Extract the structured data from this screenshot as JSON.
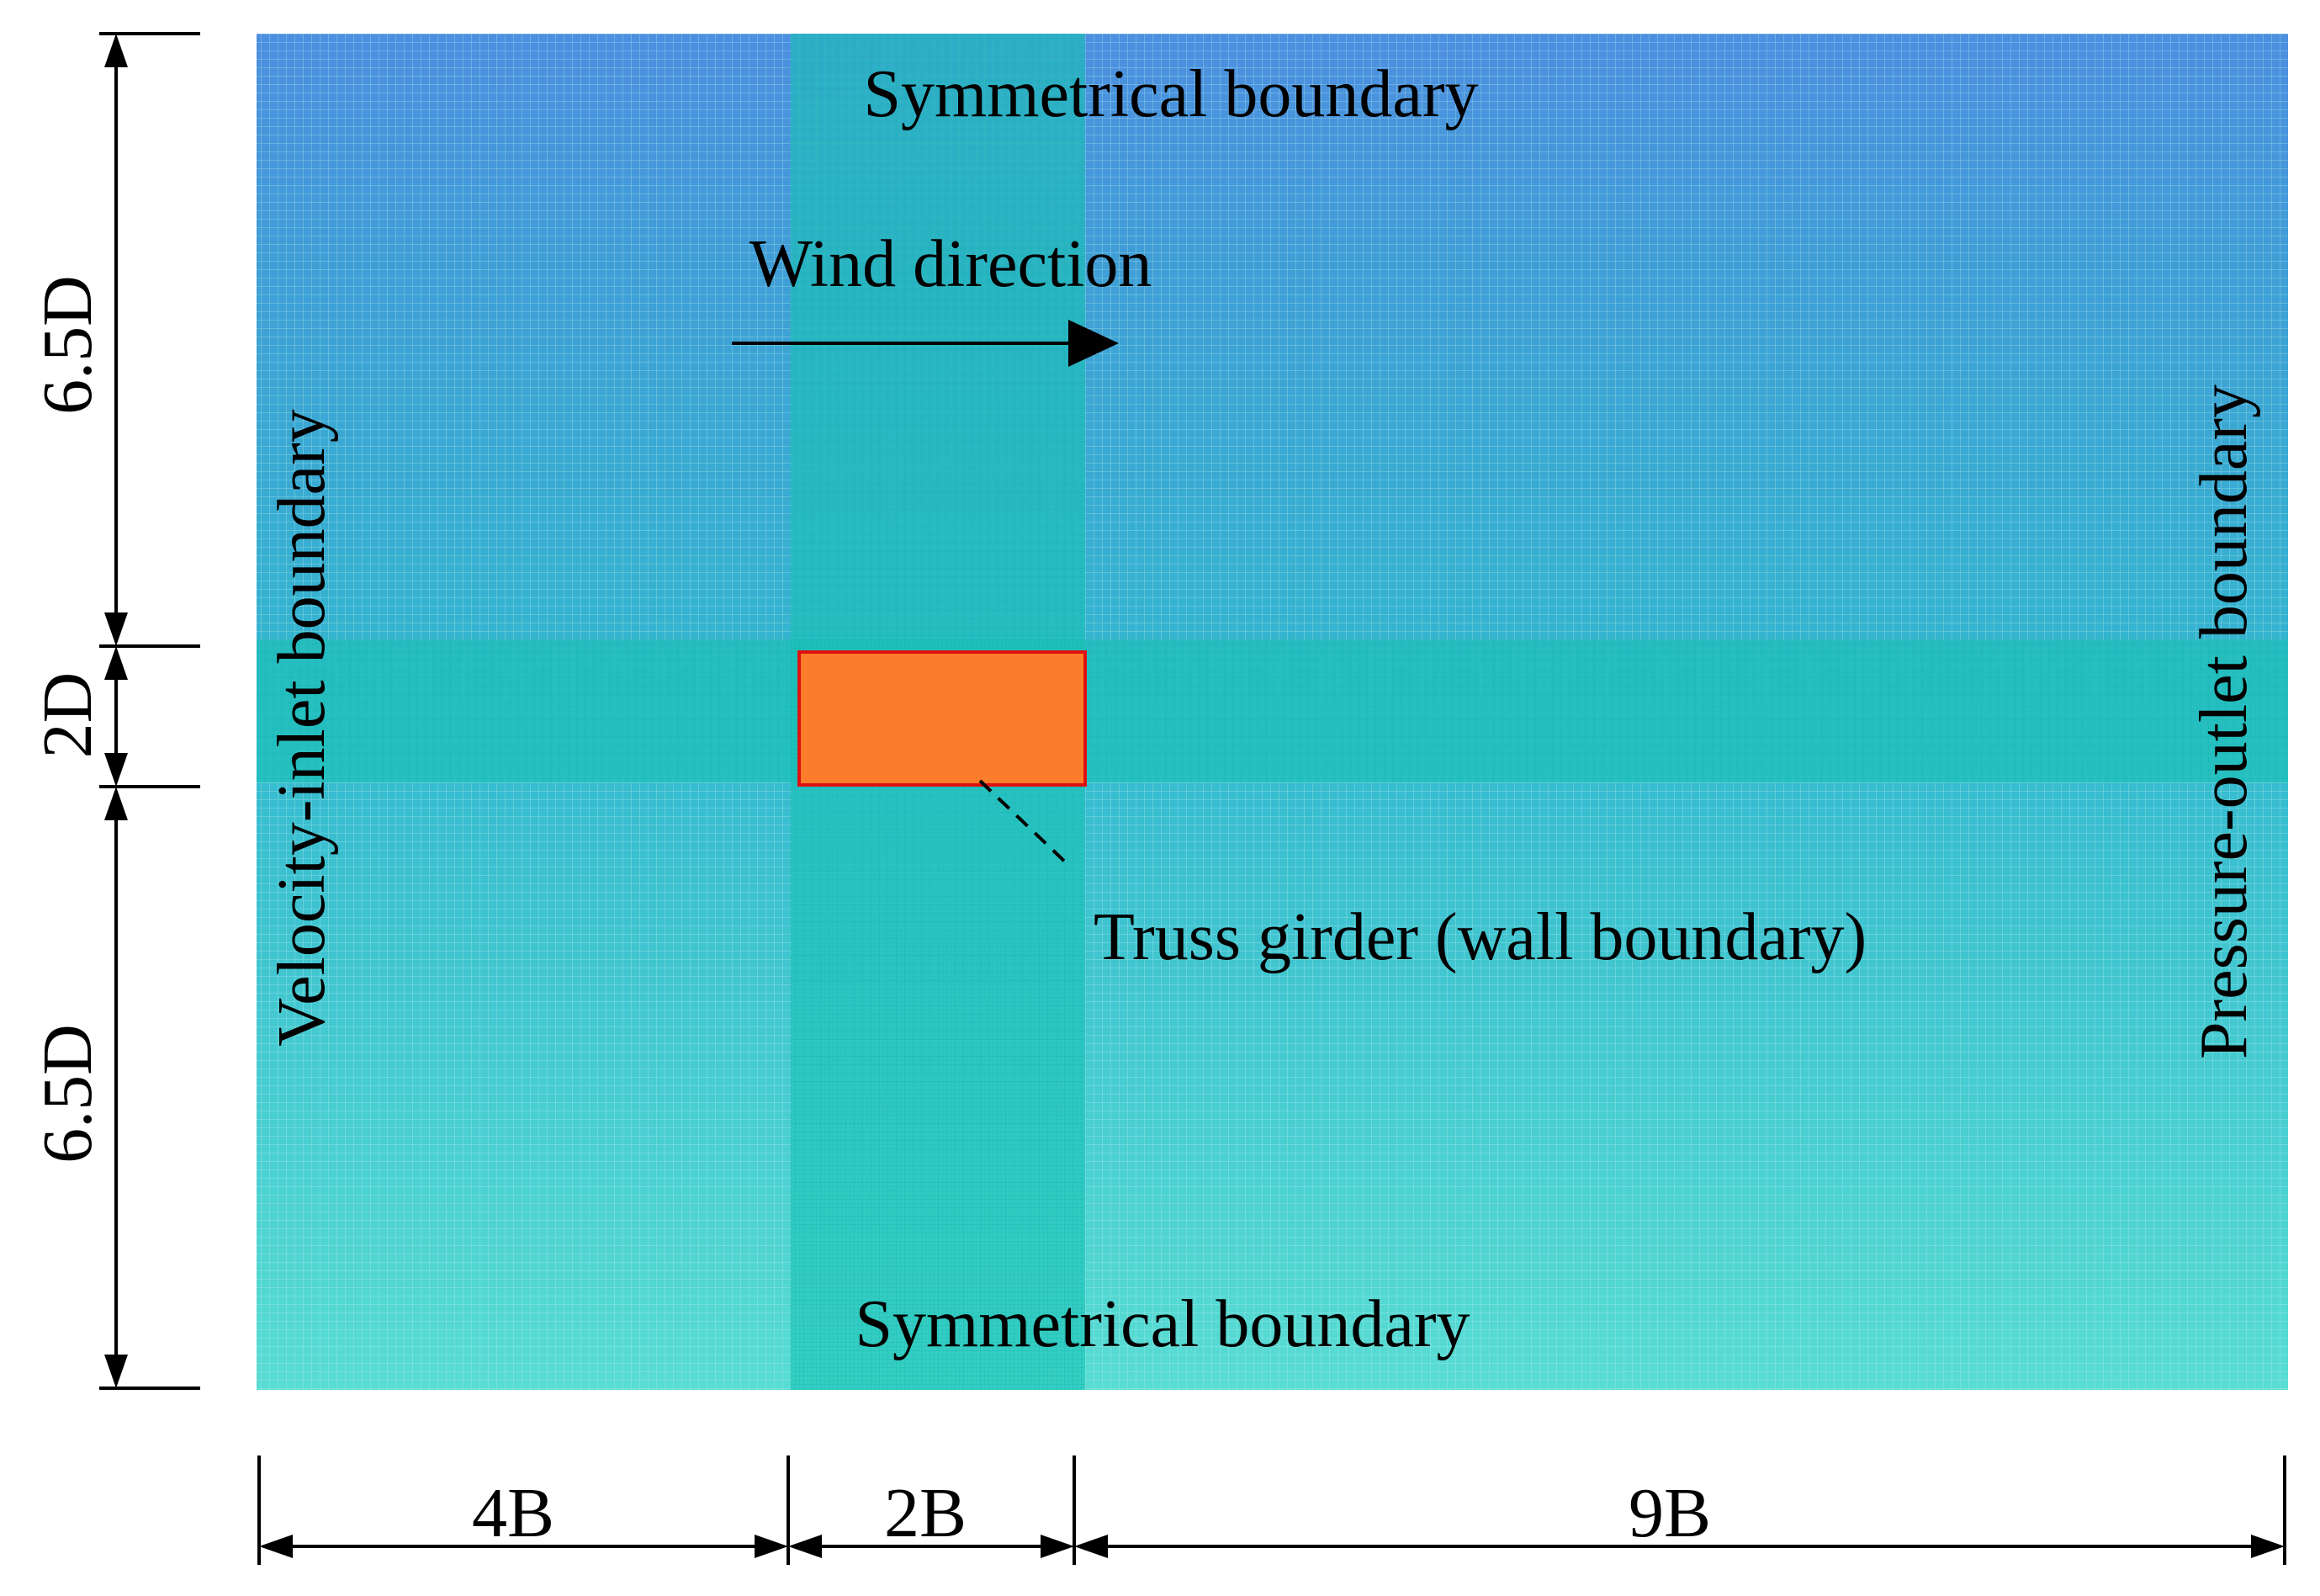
{
  "labels": {
    "top_boundary": "Symmetrical boundary",
    "bottom_boundary": "Symmetrical boundary",
    "inlet_boundary": "Velocity-inlet boundary",
    "outlet_boundary": "Pressure-outlet boundary",
    "wind_direction": "Wind direction",
    "girder": "Truss girder (wall boundary)"
  },
  "dimensions": {
    "vertical": [
      "6.5D",
      "2D",
      "6.5D"
    ],
    "horizontal": [
      "4B",
      "2B",
      "9B"
    ]
  },
  "colors": {
    "mesh_top": "#4d8fe0",
    "mesh_bottom": "#2ed4c8",
    "mesh_refined": "#18c7b8",
    "girder_fill": "#fb7d2b",
    "girder_stroke": "#e01010",
    "line": "#000000"
  }
}
